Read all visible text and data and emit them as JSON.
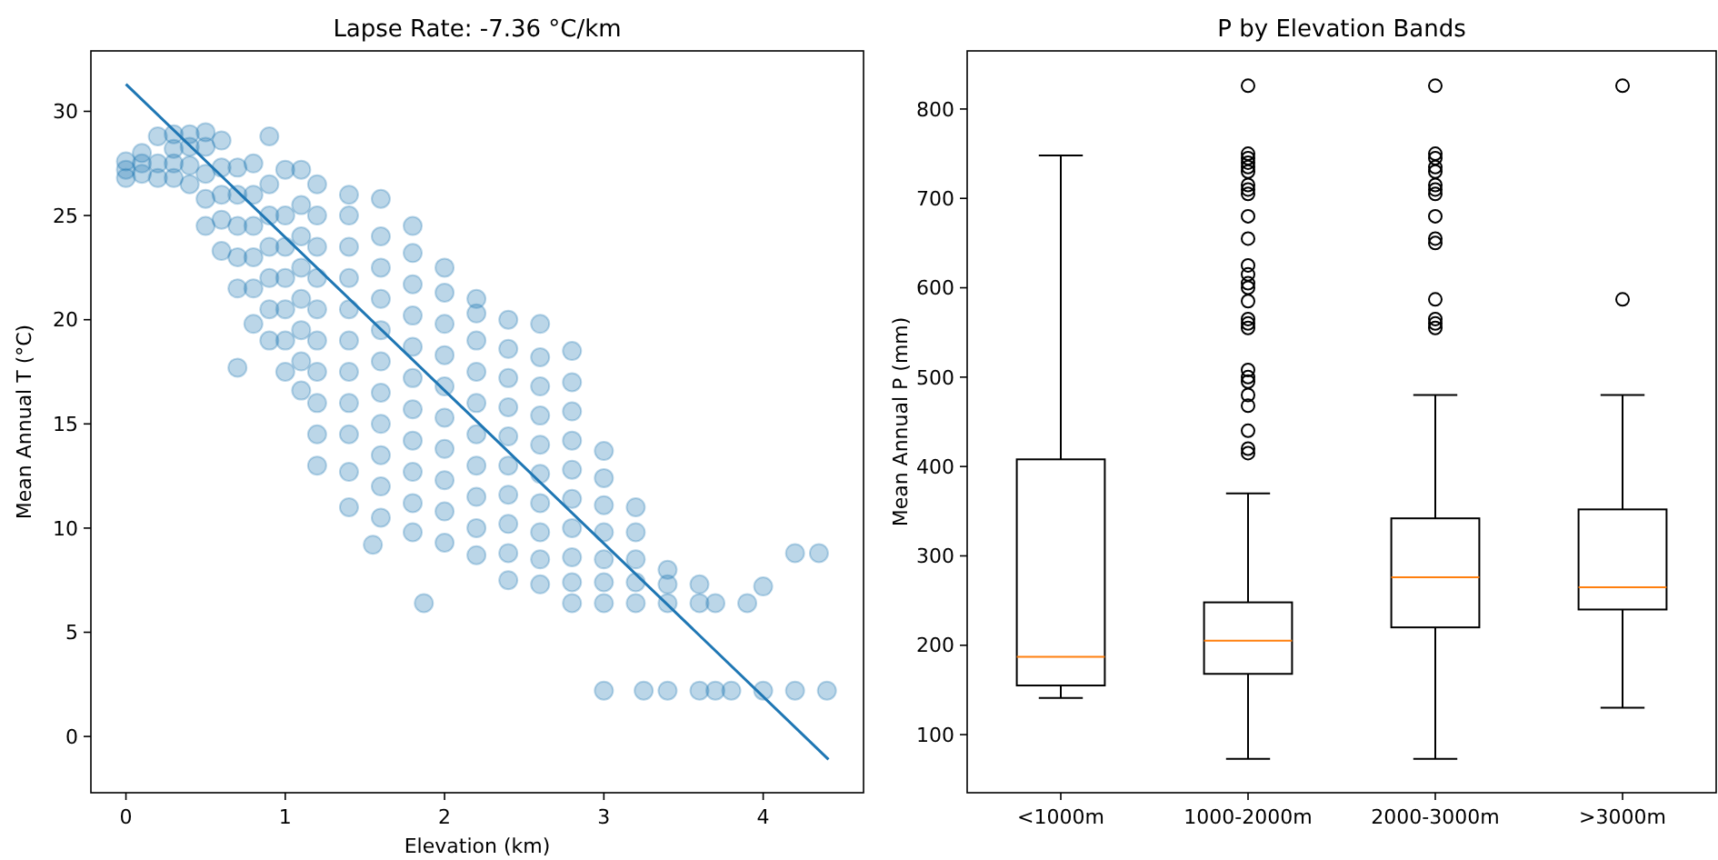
{
  "chart_data": [
    {
      "type": "scatter",
      "title": "Lapse Rate: -7.36 °C/km",
      "xlabel": "Elevation (km)",
      "ylabel": "Mean Annual T (°C)",
      "xlim": [
        -0.22,
        4.63
      ],
      "ylim": [
        -2.7,
        32.9
      ],
      "xticks": [
        0,
        1,
        2,
        3,
        4
      ],
      "yticks": [
        0,
        5,
        10,
        15,
        20,
        25,
        30
      ],
      "series": [
        {
          "type": "scatter",
          "marker": "circle",
          "color": "#1f77b4",
          "x": [
            0,
            0,
            0,
            0.1,
            0.1,
            0.1,
            0.2,
            0.2,
            0.2,
            0.3,
            0.3,
            0.3,
            0.3,
            0.4,
            0.4,
            0.4,
            0.4,
            0.5,
            0.5,
            0.5,
            0.5,
            0.5,
            0.6,
            0.6,
            0.6,
            0.6,
            0.6,
            0.7,
            0.7,
            0.7,
            0.7,
            0.7,
            0.7,
            0.8,
            0.8,
            0.8,
            0.8,
            0.8,
            0.8,
            0.9,
            0.9,
            0.9,
            0.9,
            0.9,
            0.9,
            0.9,
            1.0,
            1.0,
            1.0,
            1.0,
            1.0,
            1.0,
            1.0,
            1.1,
            1.1,
            1.1,
            1.1,
            1.1,
            1.1,
            1.1,
            1.1,
            1.2,
            1.2,
            1.2,
            1.2,
            1.2,
            1.2,
            1.2,
            1.2,
            1.2,
            1.2,
            1.4,
            1.4,
            1.4,
            1.4,
            1.4,
            1.4,
            1.4,
            1.4,
            1.4,
            1.4,
            1.4,
            1.6,
            1.6,
            1.6,
            1.6,
            1.6,
            1.6,
            1.6,
            1.6,
            1.6,
            1.6,
            1.6,
            1.8,
            1.8,
            1.8,
            1.8,
            1.8,
            1.8,
            1.8,
            1.8,
            1.8,
            1.8,
            1.8,
            2.0,
            2.0,
            2.0,
            2.0,
            2.0,
            2.0,
            2.0,
            2.0,
            2.0,
            2.0,
            2.2,
            2.2,
            2.2,
            2.2,
            2.2,
            2.2,
            2.2,
            2.2,
            2.2,
            2.2,
            2.4,
            2.4,
            2.4,
            2.4,
            2.4,
            2.4,
            2.4,
            2.4,
            2.4,
            2.4,
            2.6,
            2.6,
            2.6,
            2.6,
            2.6,
            2.6,
            2.6,
            2.6,
            2.6,
            2.6,
            2.8,
            2.8,
            2.8,
            2.8,
            2.8,
            2.8,
            2.8,
            2.8,
            2.8,
            2.8,
            3.0,
            3.0,
            3.0,
            3.0,
            3.0,
            3.0,
            3.0,
            3.0,
            3.2,
            3.2,
            3.2,
            3.2,
            3.2,
            3.25,
            3.4,
            3.4,
            3.4,
            3.4,
            3.6,
            3.6,
            3.6,
            3.7,
            3.7,
            3.8,
            3.9,
            4.0,
            4.0,
            4.2,
            4.2,
            4.35,
            4.4,
            1.87,
            1.55
          ],
          "values": [
            26.8,
            27.2,
            27.6,
            27,
            27.5,
            28,
            26.8,
            27.5,
            28.8,
            26.8,
            27.5,
            28.2,
            28.9,
            26.5,
            27.4,
            28.3,
            28.9,
            24.5,
            25.8,
            27,
            28.3,
            29,
            23.3,
            24.8,
            26,
            27.3,
            28.6,
            21.5,
            23,
            24.5,
            26,
            27.3,
            17.7,
            19.8,
            21.5,
            23,
            24.5,
            26,
            27.5,
            19,
            20.5,
            22,
            23.5,
            25,
            26.5,
            28.8,
            17.5,
            19,
            20.5,
            22,
            23.5,
            25,
            27.2,
            16.6,
            18,
            19.5,
            21,
            22.5,
            24,
            25.5,
            27.2,
            13,
            14.5,
            16,
            17.5,
            19,
            20.5,
            22,
            23.5,
            25,
            26.5,
            11,
            12.7,
            14.5,
            16,
            17.5,
            19,
            20.5,
            22,
            23.5,
            25,
            26,
            10.5,
            12,
            13.5,
            15,
            16.5,
            18,
            19.5,
            21,
            22.5,
            24,
            25.8,
            9.8,
            11.2,
            12.7,
            14.2,
            15.7,
            17.2,
            18.7,
            20.2,
            21.7,
            23.2,
            24.5,
            9.3,
            10.8,
            12.3,
            13.8,
            15.3,
            16.8,
            18.3,
            19.8,
            21.3,
            22.5,
            8.7,
            10,
            11.5,
            13,
            14.5,
            16,
            17.5,
            19,
            20.3,
            21,
            7.5,
            8.8,
            10.2,
            11.6,
            13,
            14.4,
            15.8,
            17.2,
            18.6,
            20,
            7.3,
            8.5,
            9.8,
            11.2,
            12.6,
            14,
            15.4,
            16.8,
            18.2,
            19.8,
            6.4,
            7.4,
            8.6,
            10,
            11.4,
            12.8,
            14.2,
            15.6,
            17,
            18.5,
            6.4,
            7.4,
            8.5,
            9.8,
            11.1,
            12.4,
            13.7,
            2.2,
            6.4,
            7.4,
            8.5,
            9.8,
            11,
            2.2,
            6.4,
            7.3,
            8,
            2.2,
            6.4,
            7.3,
            2.2,
            2.2,
            6.4,
            2.2,
            6.4,
            2.2,
            7.2,
            2.2,
            8.8,
            8.8,
            2.2,
            6.4,
            9.2
          ]
        },
        {
          "type": "line",
          "color": "#1f77b4",
          "x": [
            0,
            4.41
          ],
          "values": [
            31.3,
            -1.1
          ]
        }
      ]
    },
    {
      "type": "box",
      "title": "P by Elevation Bands",
      "ylabel": "Mean Annual P (mm)",
      "categories": [
        "<1000m",
        "1000-2000m",
        "2000-3000m",
        ">3000m"
      ],
      "ylim": [
        35,
        865
      ],
      "yticks": [
        100,
        200,
        300,
        400,
        500,
        600,
        700,
        800
      ],
      "boxes": [
        {
          "low": 141,
          "q1": 155,
          "median": 187,
          "q3": 408,
          "high": 748
        },
        {
          "low": 73,
          "q1": 168,
          "median": 205,
          "q3": 248,
          "high": 370,
          "outliers": [
            826,
            750,
            745,
            740,
            735,
            730,
            715,
            710,
            705,
            680,
            655,
            625,
            615,
            605,
            600,
            585,
            565,
            560,
            555,
            508,
            500,
            495,
            480,
            468,
            440,
            420,
            415
          ]
        },
        {
          "low": 73,
          "q1": 220,
          "median": 276,
          "q3": 342,
          "high": 480,
          "outliers": [
            826,
            750,
            745,
            735,
            730,
            715,
            710,
            705,
            680,
            655,
            650,
            587,
            565,
            560,
            555
          ]
        },
        {
          "low": 130,
          "q1": 240,
          "median": 265,
          "q3": 352,
          "high": 480,
          "outliers": [
            826,
            587
          ]
        }
      ]
    }
  ]
}
